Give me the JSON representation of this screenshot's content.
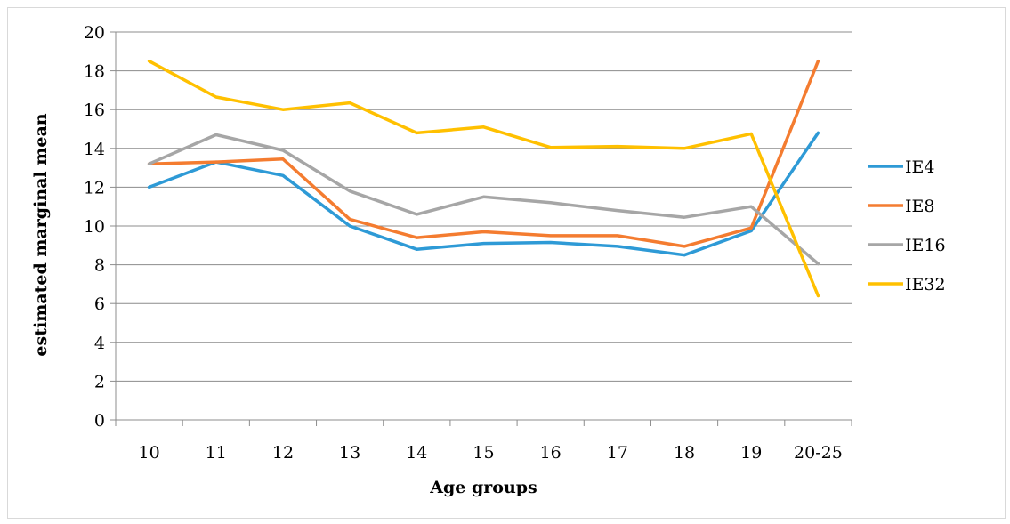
{
  "chart_data": {
    "type": "line",
    "title": "",
    "xlabel": "Age groups",
    "ylabel": "estimated marginal mean",
    "categories": [
      "10",
      "11",
      "12",
      "13",
      "14",
      "15",
      "16",
      "17",
      "18",
      "19",
      "20-25"
    ],
    "ylim": [
      0,
      20
    ],
    "yticks": [
      "0",
      "2",
      "4",
      "6",
      "8",
      "10",
      "12",
      "14",
      "16",
      "18",
      "20"
    ],
    "grid": "horizontal",
    "legend_position": "right",
    "series": [
      {
        "name": "IE4",
        "color": "#2E9AD6",
        "values": [
          12.0,
          13.3,
          12.6,
          10.0,
          8.8,
          9.1,
          9.15,
          8.95,
          8.5,
          9.75,
          14.8
        ]
      },
      {
        "name": "IE8",
        "color": "#F47C30",
        "values": [
          13.2,
          13.3,
          13.45,
          10.35,
          9.4,
          9.7,
          9.5,
          9.5,
          8.95,
          9.9,
          18.5
        ]
      },
      {
        "name": "IE16",
        "color": "#A6A6A6",
        "values": [
          13.2,
          14.7,
          13.9,
          11.8,
          10.6,
          11.5,
          11.2,
          10.8,
          10.45,
          11.0,
          8.05
        ]
      },
      {
        "name": "IE32",
        "color": "#FFC000",
        "values": [
          18.5,
          16.65,
          16.0,
          16.35,
          14.8,
          15.1,
          14.05,
          14.1,
          14.0,
          14.75,
          6.4
        ]
      }
    ]
  }
}
